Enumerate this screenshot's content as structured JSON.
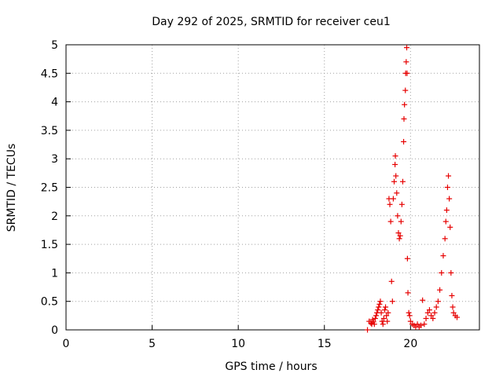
{
  "chart_data": {
    "type": "scatter",
    "title": "Day 292 of 2025, SRMTID for receiver ceu1",
    "xlabel": "GPS time / hours",
    "ylabel": "SRMTID / TECUs",
    "xlim": [
      0,
      24
    ],
    "ylim": [
      0,
      5
    ],
    "xticks": [
      0,
      5,
      10,
      15,
      20
    ],
    "yticks": [
      0,
      0.5,
      1,
      1.5,
      2,
      2.5,
      3,
      3.5,
      4,
      4.5,
      5
    ],
    "grid": true,
    "marker": "+",
    "color": "#e60000",
    "series": [
      {
        "name": "ceu1",
        "x": [
          17.5,
          17.6,
          17.7,
          17.75,
          17.8,
          17.85,
          17.9,
          17.95,
          18.0,
          18.05,
          18.1,
          18.15,
          18.2,
          18.25,
          18.3,
          18.35,
          18.4,
          18.45,
          18.5,
          18.55,
          18.6,
          18.65,
          18.7,
          18.75,
          18.8,
          18.85,
          18.9,
          18.95,
          19.0,
          19.05,
          19.1,
          19.12,
          19.15,
          19.2,
          19.25,
          19.3,
          19.35,
          19.4,
          19.45,
          19.5,
          19.55,
          19.6,
          19.62,
          19.65,
          19.7,
          19.72,
          19.75,
          19.78,
          19.8,
          19.82,
          19.85,
          19.9,
          19.95,
          20.0,
          20.1,
          20.2,
          20.3,
          20.4,
          20.5,
          20.6,
          20.7,
          20.8,
          20.9,
          21.0,
          21.1,
          21.2,
          21.3,
          21.4,
          21.5,
          21.6,
          21.7,
          21.8,
          21.9,
          22.0,
          22.05,
          22.1,
          22.15,
          22.2,
          22.25,
          22.3,
          22.35,
          22.4,
          22.45,
          22.5,
          22.6,
          22.7
        ],
        "y": [
          0.0,
          0.15,
          0.12,
          0.1,
          0.18,
          0.14,
          0.1,
          0.2,
          0.25,
          0.3,
          0.35,
          0.4,
          0.45,
          0.5,
          0.3,
          0.15,
          0.1,
          0.2,
          0.35,
          0.4,
          0.25,
          0.15,
          0.3,
          2.3,
          2.2,
          1.9,
          0.85,
          0.5,
          2.3,
          2.6,
          2.9,
          3.05,
          2.7,
          2.4,
          2.0,
          1.7,
          1.6,
          1.65,
          1.9,
          2.2,
          2.6,
          3.3,
          3.7,
          3.95,
          4.2,
          4.5,
          4.7,
          4.95,
          4.5,
          1.25,
          0.65,
          0.3,
          0.25,
          0.15,
          0.1,
          0.08,
          0.05,
          0.1,
          0.05,
          0.08,
          0.52,
          0.1,
          0.2,
          0.3,
          0.35,
          0.25,
          0.2,
          0.3,
          0.4,
          0.5,
          0.7,
          1.0,
          1.3,
          1.6,
          1.9,
          2.1,
          2.5,
          2.7,
          2.3,
          1.8,
          1.0,
          0.6,
          0.4,
          0.3,
          0.25,
          0.22
        ]
      }
    ]
  }
}
